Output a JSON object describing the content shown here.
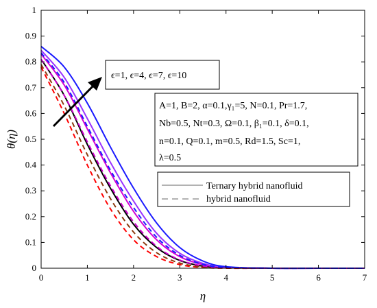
{
  "chart_data": {
    "type": "line",
    "xlabel": "η",
    "ylabel": "θ(η)",
    "xlim": [
      0,
      7
    ],
    "ylim": [
      0,
      1
    ],
    "xticks": [
      "0",
      "1",
      "2",
      "3",
      "4",
      "5",
      "6",
      "7"
    ],
    "yticks": [
      "0",
      "0.1",
      "0.2",
      "0.3",
      "0.4",
      "0.5",
      "0.6",
      "0.7",
      "0.8",
      "0.9",
      "1"
    ],
    "grid": false,
    "arrow_annotation": "ϵ=1, ϵ=4, ϵ=7, ϵ=10",
    "parameter_box": [
      "A=1, B=2, α=0.1,γ₁=5, N=0.1, Pr=1.7,",
      "Nb=0.5, Nt=0.3, Ω=0.1, β₁=0.1, δ=0.1,",
      "n=0.1, Q=0.1, m=0.5, Rd=1.5, Sc=1,",
      "λ=0.5"
    ],
    "legend": {
      "position": "right-middle",
      "entries": [
        {
          "label": "Ternary hybrid nanofluid",
          "style": "solid"
        },
        {
          "label": "hybrid nanofluid",
          "style": "dashed"
        }
      ]
    },
    "series": [
      {
        "style": "solid",
        "color": "#000000",
        "x": [
          0,
          0.5,
          1,
          1.5,
          2,
          2.5,
          3,
          3.5,
          4,
          5,
          6,
          7
        ],
        "y": [
          0.81,
          0.67,
          0.48,
          0.31,
          0.17,
          0.08,
          0.03,
          0.008,
          0.002,
          0,
          0,
          0
        ]
      },
      {
        "style": "solid",
        "color": "#d400d4",
        "x": [
          0,
          0.5,
          1,
          1.5,
          2,
          2.5,
          3,
          3.5,
          4,
          5,
          6,
          7
        ],
        "y": [
          0.83,
          0.71,
          0.54,
          0.37,
          0.22,
          0.11,
          0.045,
          0.014,
          0.003,
          0,
          0,
          0
        ]
      },
      {
        "style": "solid",
        "color": "#9933ff",
        "x": [
          0,
          0.5,
          1,
          1.5,
          2,
          2.5,
          3,
          3.5,
          4,
          5,
          6,
          7
        ],
        "y": [
          0.845,
          0.74,
          0.58,
          0.41,
          0.26,
          0.135,
          0.058,
          0.019,
          0.004,
          0,
          0,
          0
        ]
      },
      {
        "style": "solid",
        "color": "#1a1aff",
        "x": [
          0,
          0.5,
          1,
          1.5,
          2,
          2.5,
          3,
          3.5,
          4,
          5,
          6,
          7
        ],
        "y": [
          0.86,
          0.78,
          0.64,
          0.47,
          0.31,
          0.175,
          0.08,
          0.028,
          0.006,
          0,
          0,
          0
        ]
      },
      {
        "style": "dashed",
        "color": "#ff0000",
        "x": [
          0,
          0.5,
          1,
          1.5,
          2,
          2.5,
          3,
          3.5,
          4,
          5,
          6,
          7
        ],
        "y": [
          0.78,
          0.6,
          0.4,
          0.23,
          0.11,
          0.045,
          0.014,
          0.003,
          0,
          0,
          0,
          0
        ]
      },
      {
        "style": "dashed",
        "color": "#8b3a0f",
        "x": [
          0,
          0.5,
          1,
          1.5,
          2,
          2.5,
          3,
          3.5,
          4,
          5,
          6,
          7
        ],
        "y": [
          0.79,
          0.63,
          0.44,
          0.27,
          0.14,
          0.06,
          0.02,
          0.005,
          0.001,
          0,
          0,
          0
        ]
      },
      {
        "style": "dashed",
        "color": "#cc00cc",
        "x": [
          0,
          0.5,
          1,
          1.5,
          2,
          2.5,
          3,
          3.5,
          4,
          5,
          6,
          7
        ],
        "y": [
          0.81,
          0.67,
          0.49,
          0.32,
          0.18,
          0.085,
          0.032,
          0.009,
          0.002,
          0,
          0,
          0
        ]
      },
      {
        "style": "dashed",
        "color": "#1a1aff",
        "x": [
          0,
          0.5,
          1,
          1.5,
          2,
          2.5,
          3,
          3.5,
          4,
          5,
          6,
          7
        ],
        "y": [
          0.835,
          0.72,
          0.55,
          0.38,
          0.235,
          0.12,
          0.05,
          0.015,
          0.003,
          0,
          0,
          0
        ]
      }
    ]
  }
}
